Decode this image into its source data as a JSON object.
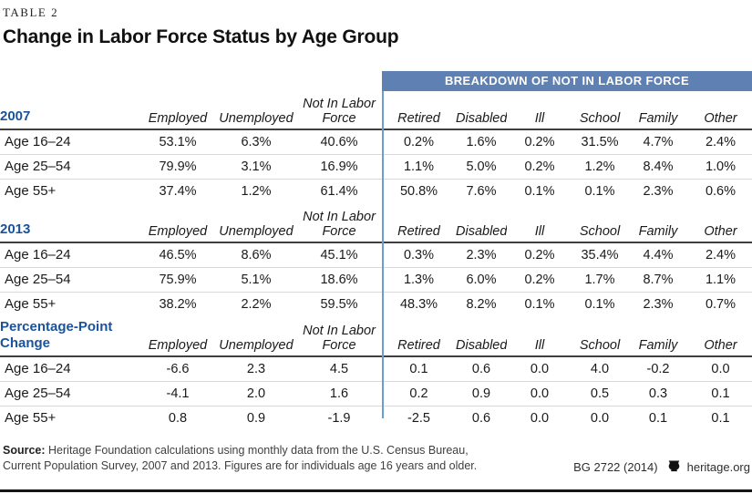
{
  "header": {
    "table_label": "TABLE 2",
    "title": "Change in Labor Force Status by Age Group"
  },
  "banner": {
    "label": "BREAKDOWN OF NOT IN LABOR FORCE",
    "color": "#5e80b2"
  },
  "colors": {
    "section_label_blue": "#1b5299",
    "divider_blue": "#6d9dce",
    "banner_blue": "#5e80b2",
    "rule_dark": "#3f3f3f",
    "rule_light": "#d9d9d9"
  },
  "chart_data": {
    "type": "table",
    "title": "Change in Labor Force Status by Age Group",
    "table_label": "TABLE 2",
    "column_group_header": "BREAKDOWN OF NOT IN LABOR FORCE",
    "columns": [
      "Employed",
      "Unemployed",
      "Not In Labor Force",
      "Retired",
      "Disabled",
      "Ill",
      "School",
      "Family",
      "Other"
    ],
    "breakdown_columns_start_index": 3,
    "sections": [
      {
        "id": "2007",
        "label": "2007",
        "rows": [
          {
            "label": "Age 16–24",
            "values": [
              "53.1%",
              "6.3%",
              "40.6%",
              "0.2%",
              "1.6%",
              "0.2%",
              "31.5%",
              "4.7%",
              "2.4%"
            ]
          },
          {
            "label": "Age 25–54",
            "values": [
              "79.9%",
              "3.1%",
              "16.9%",
              "1.1%",
              "5.0%",
              "0.2%",
              "1.2%",
              "8.4%",
              "1.0%"
            ]
          },
          {
            "label": "Age 55+",
            "values": [
              "37.4%",
              "1.2%",
              "61.4%",
              "50.8%",
              "7.6%",
              "0.1%",
              "0.1%",
              "2.3%",
              "0.6%"
            ]
          }
        ]
      },
      {
        "id": "2013",
        "label": "2013",
        "rows": [
          {
            "label": "Age 16–24",
            "values": [
              "46.5%",
              "8.6%",
              "45.1%",
              "0.3%",
              "2.3%",
              "0.2%",
              "35.4%",
              "4.4%",
              "2.4%"
            ]
          },
          {
            "label": "Age 25–54",
            "values": [
              "75.9%",
              "5.1%",
              "18.6%",
              "1.3%",
              "6.0%",
              "0.2%",
              "1.7%",
              "8.7%",
              "1.1%"
            ]
          },
          {
            "label": "Age 55+",
            "values": [
              "38.2%",
              "2.2%",
              "59.5%",
              "48.3%",
              "8.2%",
              "0.1%",
              "0.1%",
              "2.3%",
              "0.7%"
            ]
          }
        ]
      },
      {
        "id": "percentage-point-change",
        "label": "Percentage-Point Change",
        "rows": [
          {
            "label": "Age 16–24",
            "values": [
              "-6.6",
              "2.3",
              "4.5",
              "0.1",
              "0.6",
              "0.0",
              "4.0",
              "-0.2",
              "0.0"
            ]
          },
          {
            "label": "Age 25–54",
            "values": [
              "-4.1",
              "2.0",
              "1.6",
              "0.2",
              "0.9",
              "0.0",
              "0.5",
              "0.3",
              "0.1"
            ]
          },
          {
            "label": "Age 55+",
            "values": [
              "0.8",
              "0.9",
              "-1.9",
              "-2.5",
              "0.6",
              "0.0",
              "0.0",
              "0.1",
              "0.1"
            ]
          }
        ]
      }
    ]
  },
  "footer": {
    "source_label": "Source:",
    "source_line1": " Heritage Foundation calculations using monthly data from the U.S. Census Bureau,",
    "source_line2": "Current Population Survey, 2007 and 2013. Figures are for individuals age 16 years and older.",
    "publication_code": "BG 2722 (2014)",
    "site": "heritage.org"
  }
}
